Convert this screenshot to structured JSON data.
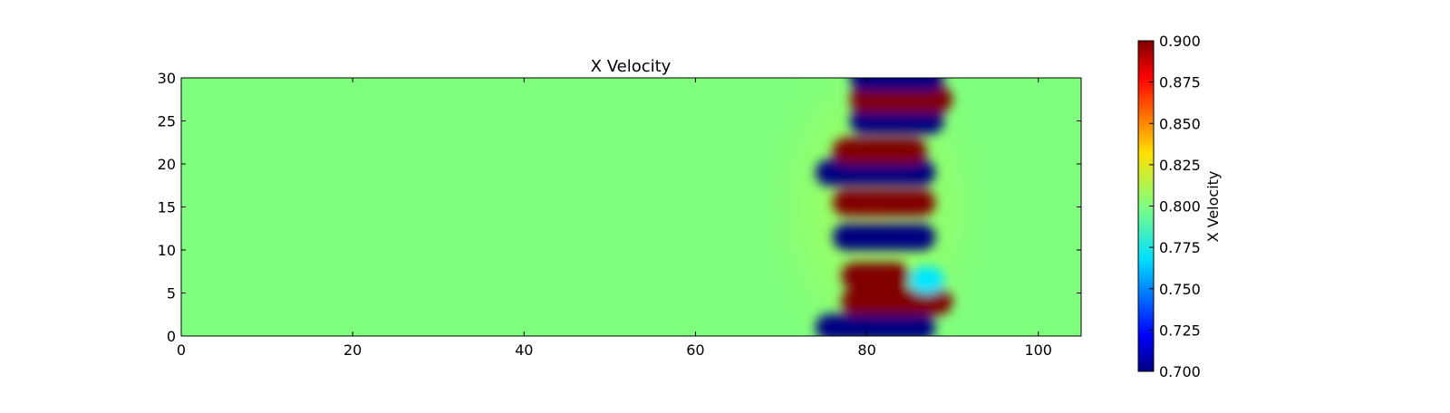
{
  "chart_data": {
    "type": "heatmap",
    "title": "X Velocity",
    "xlabel": "",
    "ylabel": "",
    "xlim": [
      0,
      105
    ],
    "ylim": [
      0,
      30
    ],
    "xticks": [
      0,
      20,
      40,
      60,
      80,
      100
    ],
    "yticks": [
      0,
      5,
      10,
      15,
      20,
      25,
      30
    ],
    "background_value": 0.8,
    "colormap": "jet",
    "colorbar": {
      "label": "X Velocity",
      "range": [
        0.7,
        0.9
      ],
      "ticks": [
        "0.700",
        "0.725",
        "0.750",
        "0.775",
        "0.800",
        "0.825",
        "0.850",
        "0.875",
        "0.900"
      ],
      "placement": "right"
    },
    "bands": [
      {
        "y": 1.0,
        "x_start": 74,
        "x_end": 88,
        "value": 0.7
      },
      {
        "y": 4.0,
        "x_start": 77,
        "x_end": 90,
        "value": 0.9
      },
      {
        "y": 7.0,
        "x_start": 77,
        "x_end": 85,
        "value": 0.9
      },
      {
        "y": 6.5,
        "x_start": 85,
        "x_end": 89,
        "value": 0.77
      },
      {
        "y": 11.5,
        "x_start": 76,
        "x_end": 88,
        "value": 0.7
      },
      {
        "y": 15.5,
        "x_start": 76,
        "x_end": 88,
        "value": 0.9
      },
      {
        "y": 19.0,
        "x_start": 74,
        "x_end": 88,
        "value": 0.7
      },
      {
        "y": 21.5,
        "x_start": 76,
        "x_end": 87,
        "value": 0.9
      },
      {
        "y": 25.0,
        "x_start": 78,
        "x_end": 89,
        "value": 0.7
      },
      {
        "y": 27.5,
        "x_start": 78,
        "x_end": 90,
        "value": 0.9
      },
      {
        "y": 30.0,
        "x_start": 78,
        "x_end": 89,
        "value": 0.7
      }
    ]
  }
}
